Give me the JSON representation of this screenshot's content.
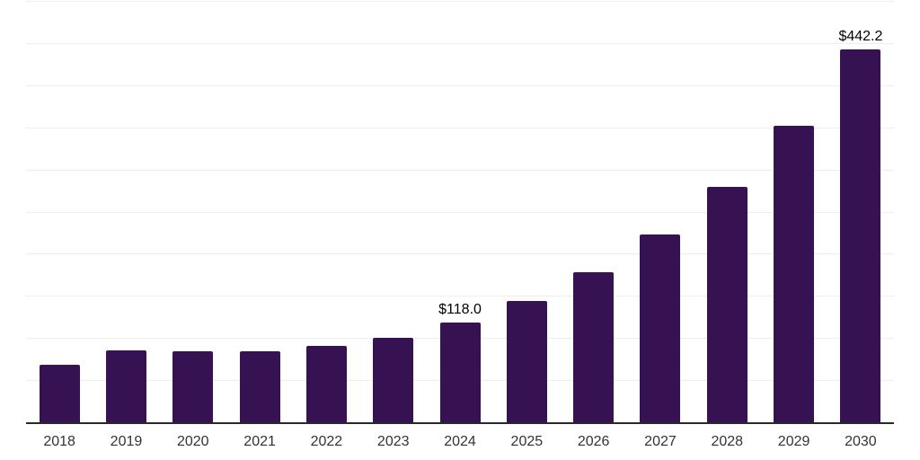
{
  "chart_data": {
    "type": "bar",
    "categories": [
      "2018",
      "2019",
      "2020",
      "2021",
      "2022",
      "2023",
      "2024",
      "2025",
      "2026",
      "2027",
      "2028",
      "2029",
      "2030"
    ],
    "values": [
      68.7,
      85.4,
      84.0,
      84.7,
      90.8,
      99.9,
      118.0,
      143.6,
      178.1,
      222.5,
      279.4,
      352.1,
      442.2
    ],
    "data_labels": [
      null,
      null,
      null,
      null,
      null,
      null,
      "$118.0",
      null,
      null,
      null,
      null,
      null,
      "$442.2"
    ],
    "value_prefix": "$",
    "xlabel": "",
    "ylabel": "",
    "ylim": [
      0,
      500
    ],
    "gridline_interval": 50,
    "grid": "horizontal",
    "legend": "none",
    "colors": {
      "bar": "#371253",
      "gridline": "#ededed",
      "axis_line": "#2a2a2a",
      "data_label": "#000000",
      "tick_label": "#333333",
      "background": "#ffffff"
    }
  }
}
